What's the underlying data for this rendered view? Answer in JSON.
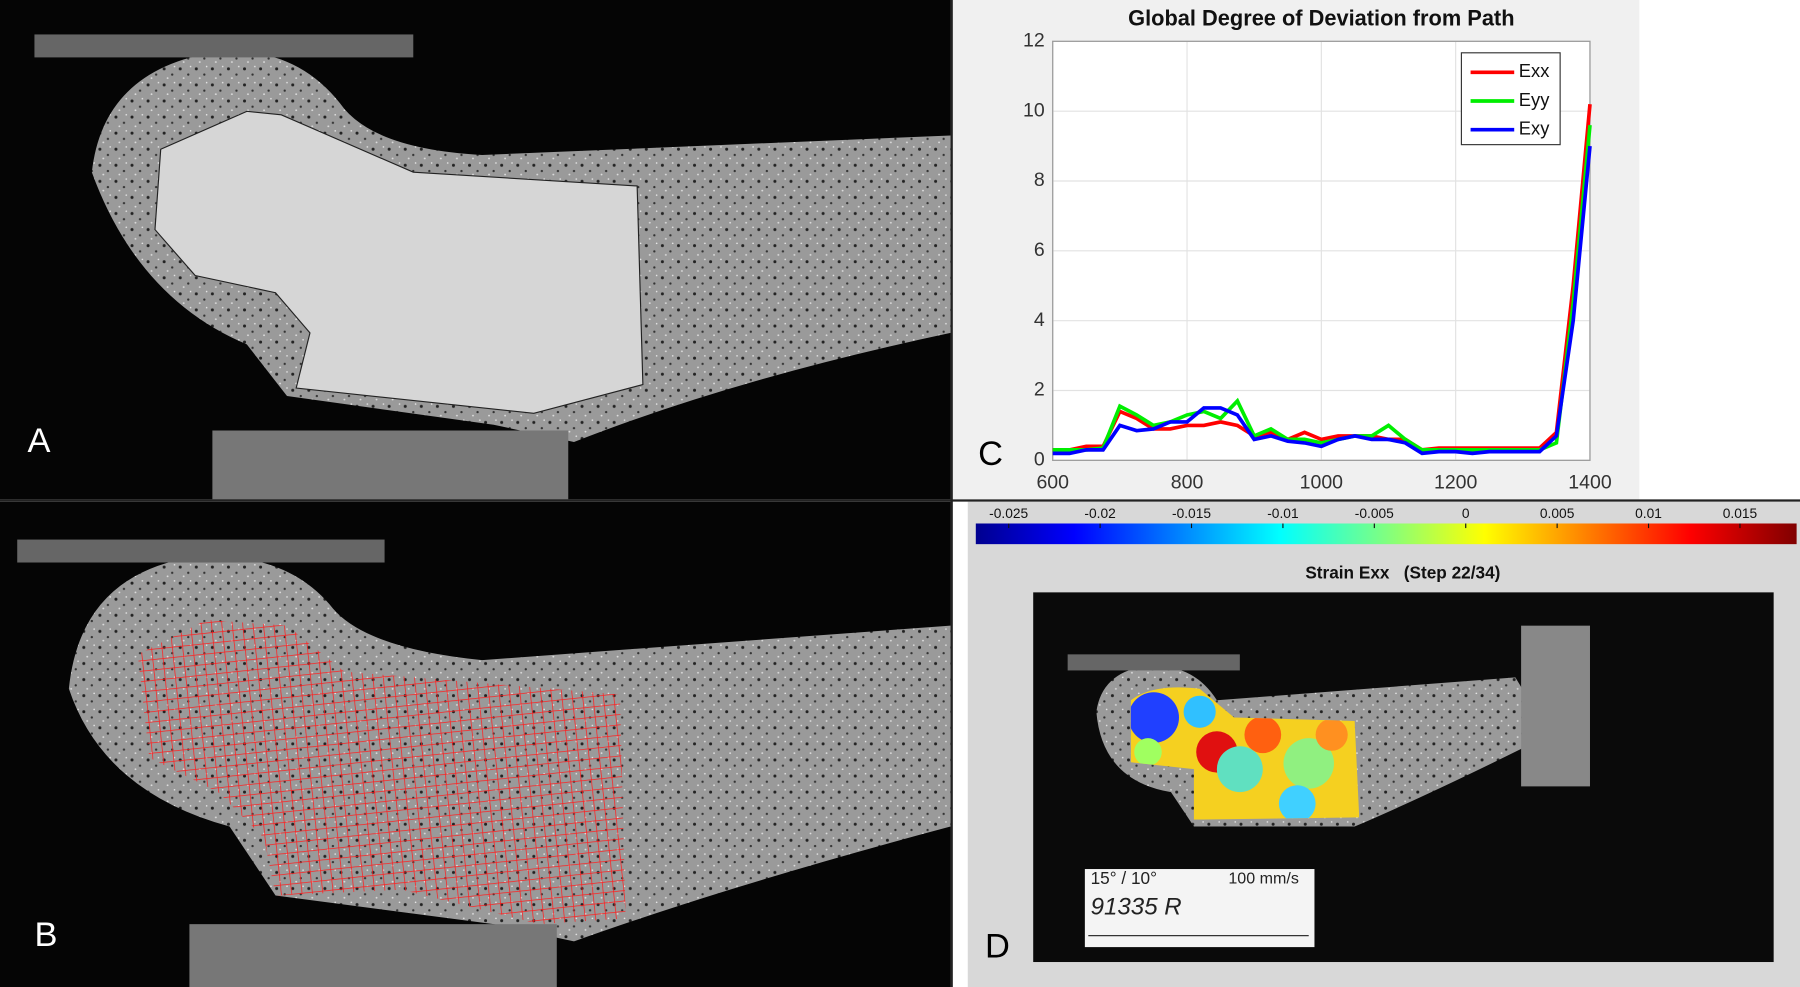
{
  "chart_data": [
    {
      "type": "line",
      "title": "Global Degree of Deviation from Path",
      "x": [
        600,
        625,
        650,
        675,
        700,
        725,
        750,
        775,
        800,
        825,
        850,
        875,
        900,
        925,
        950,
        975,
        1000,
        1025,
        1050,
        1075,
        1100,
        1125,
        1150,
        1175,
        1200,
        1225,
        1250,
        1275,
        1300,
        1325,
        1350,
        1375,
        1400
      ],
      "series": [
        {
          "name": "Exx",
          "color": "#ff0000",
          "values": [
            0.3,
            0.3,
            0.4,
            0.4,
            1.4,
            1.2,
            0.9,
            0.9,
            1.0,
            1.0,
            1.1,
            1.0,
            0.7,
            0.8,
            0.6,
            0.8,
            0.6,
            0.7,
            0.7,
            0.7,
            0.6,
            0.6,
            0.3,
            0.35,
            0.35,
            0.35,
            0.35,
            0.35,
            0.35,
            0.35,
            0.8,
            5.0,
            10.2
          ]
        },
        {
          "name": "Eyy",
          "color": "#00ee00",
          "values": [
            0.3,
            0.3,
            0.3,
            0.35,
            1.55,
            1.3,
            1.0,
            1.1,
            1.3,
            1.4,
            1.2,
            1.7,
            0.7,
            0.9,
            0.6,
            0.6,
            0.5,
            0.6,
            0.7,
            0.7,
            1.0,
            0.6,
            0.3,
            0.3,
            0.3,
            0.3,
            0.3,
            0.3,
            0.3,
            0.3,
            0.5,
            4.5,
            9.6
          ]
        },
        {
          "name": "Exy",
          "color": "#0000ff",
          "values": [
            0.2,
            0.2,
            0.3,
            0.3,
            1.0,
            0.85,
            0.9,
            1.1,
            1.1,
            1.5,
            1.5,
            1.3,
            0.6,
            0.7,
            0.55,
            0.5,
            0.4,
            0.6,
            0.7,
            0.6,
            0.6,
            0.5,
            0.2,
            0.25,
            0.25,
            0.2,
            0.25,
            0.25,
            0.25,
            0.25,
            0.7,
            4.0,
            9.0
          ]
        }
      ],
      "xlim": [
        600,
        1400
      ],
      "ylim": [
        0,
        12
      ],
      "xticks": [
        600,
        800,
        1000,
        1200,
        1400
      ],
      "yticks": [
        0,
        2,
        4,
        6,
        8,
        10,
        12
      ],
      "grid": true,
      "legend": "upper right"
    },
    {
      "type": "colorbar",
      "title": "Strain Exx   (Step 22/34)",
      "xlim": [
        -0.0268,
        0.0181
      ],
      "xticks": [
        -0.025,
        -0.02,
        -0.015,
        -0.01,
        -0.005,
        0,
        0.005,
        0.01,
        0.015
      ]
    }
  ],
  "panels": {
    "labels": [
      "A",
      "B",
      "C",
      "D"
    ]
  },
  "specimen_label": {
    "angle": "15° / 10°",
    "speed": "100 mm/s",
    "id": "91335 R"
  }
}
